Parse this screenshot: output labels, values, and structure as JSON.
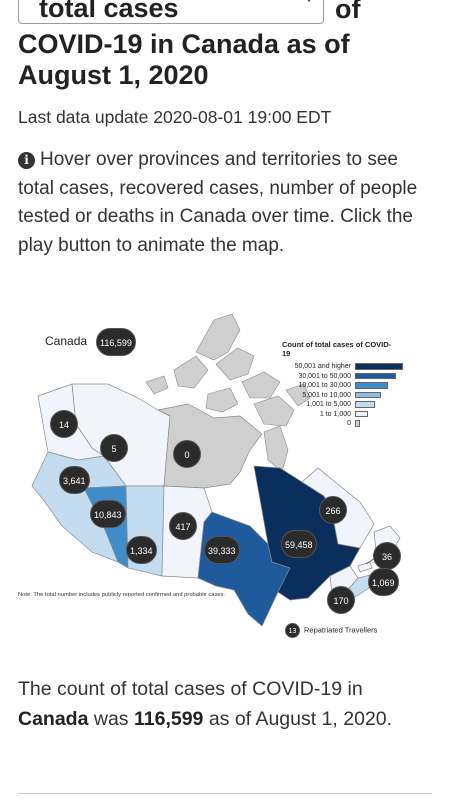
{
  "selector": {
    "value": "total cases",
    "suffix": "of"
  },
  "title": "COVID-19 in Canada as of August 1, 2020",
  "last_update": "Last data update 2020-08-01 19:00 EDT",
  "info_icon": "info-circle-icon",
  "info_text": "Hover over provinces and territories to see total cases, recovered cases, number of people tested or deaths in Canada over time. Click the play button to animate the map.",
  "map": {
    "canada": {
      "label": "Canada",
      "value": "116,599"
    },
    "legend": {
      "title": "Count of total cases of COVID-19",
      "items": [
        {
          "label": "50,001 and higher",
          "color": "#0b2f5c",
          "fraction": 1.0
        },
        {
          "label": "30,001 to 50,000",
          "color": "#1f5a9c",
          "fraction": 0.85
        },
        {
          "label": "10,001 to 30,000",
          "color": "#3f8cc8",
          "fraction": 0.68
        },
        {
          "label": "5,001 to 10,000",
          "color": "#8bbfe2",
          "fraction": 0.54
        },
        {
          "label": "1,001 to 5,000",
          "color": "#c3dcef",
          "fraction": 0.41
        },
        {
          "label": "1 to 1,000",
          "color": "#f1f5fb",
          "fraction": 0.28
        },
        {
          "label": "0",
          "color": "#cfcfcf",
          "fraction": 0.1
        }
      ]
    },
    "regions": {
      "yt": {
        "value": "14",
        "color": "#f1f5fb"
      },
      "nt": {
        "value": "5",
        "color": "#f1f5fb"
      },
      "nu": {
        "value": "0",
        "color": "#cfcfcf"
      },
      "bc": {
        "value": "3,641",
        "color": "#c3dcef"
      },
      "ab": {
        "value": "10,843",
        "color": "#3f8cc8"
      },
      "sk": {
        "value": "1,334",
        "color": "#c3dcef"
      },
      "mb": {
        "value": "417",
        "color": "#f1f5fb"
      },
      "on": {
        "value": "39,333",
        "color": "#1f5a9c"
      },
      "qc": {
        "value": "59,458",
        "color": "#0b2f5c"
      },
      "nl": {
        "value": "266",
        "color": "#f1f5fb"
      },
      "pe": {
        "value": "36",
        "color": "#f1f5fb"
      },
      "ns": {
        "value": "1,069",
        "color": "#c3dcef"
      },
      "nb": {
        "value": "170",
        "color": "#f1f5fb"
      }
    },
    "note": "Note: The total number includes publicly reported confirmed and probable cases.",
    "repatriated": {
      "value": "13",
      "label": "Repatriated Travellers"
    }
  },
  "summary": {
    "prefix": "The count of total cases of COVID-19 in",
    "place": "Canada",
    "middle": "was",
    "count": "116,599",
    "suffix": "as of August 1, 2020."
  }
}
